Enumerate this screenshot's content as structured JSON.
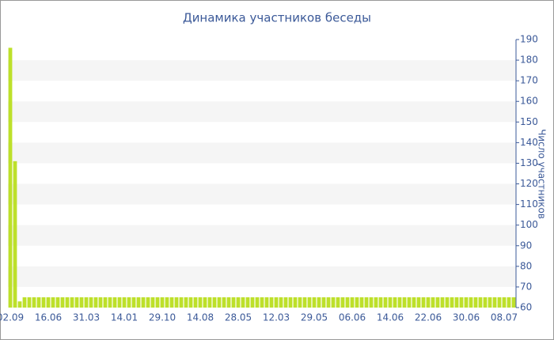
{
  "chart_data": {
    "type": "bar",
    "title": "Динамика участников беседы",
    "y_axis_label": "Число участников",
    "categories": [
      "02.09",
      null,
      null,
      null,
      null,
      null,
      null,
      null,
      "16.06",
      null,
      null,
      null,
      null,
      null,
      null,
      null,
      "31.03",
      null,
      null,
      null,
      null,
      null,
      null,
      null,
      "14.01",
      null,
      null,
      null,
      null,
      null,
      null,
      null,
      "29.10",
      null,
      null,
      null,
      null,
      null,
      null,
      null,
      "14.08",
      null,
      null,
      null,
      null,
      null,
      null,
      null,
      "28.05",
      null,
      null,
      null,
      null,
      null,
      null,
      null,
      "12.03",
      null,
      null,
      null,
      null,
      null,
      null,
      null,
      "29.05",
      null,
      null,
      null,
      null,
      null,
      null,
      null,
      "06.06",
      null,
      null,
      null,
      null,
      null,
      null,
      null,
      "14.06",
      null,
      null,
      null,
      null,
      null,
      null,
      null,
      "22.06",
      null,
      null,
      null,
      null,
      null,
      null,
      null,
      "30.06",
      null,
      null,
      null,
      null,
      null,
      null,
      null,
      "08.07",
      null,
      null
    ],
    "values": [
      186,
      131,
      63,
      65,
      65,
      65,
      65,
      65,
      65,
      65,
      65,
      65,
      65,
      65,
      65,
      65,
      65,
      65,
      65,
      65,
      65,
      65,
      65,
      65,
      65,
      65,
      65,
      65,
      65,
      65,
      65,
      65,
      65,
      65,
      65,
      65,
      65,
      65,
      65,
      65,
      65,
      65,
      65,
      65,
      65,
      65,
      65,
      65,
      65,
      65,
      65,
      65,
      65,
      65,
      65,
      65,
      65,
      65,
      65,
      65,
      65,
      65,
      65,
      65,
      65,
      65,
      65,
      65,
      65,
      65,
      65,
      65,
      65,
      65,
      65,
      65,
      65,
      65,
      65,
      65,
      65,
      65,
      65,
      65,
      65,
      65,
      65,
      65,
      65,
      65,
      65,
      65,
      65,
      65,
      65,
      65,
      65,
      65,
      65,
      65,
      65,
      65,
      65,
      65,
      65,
      65,
      65
    ],
    "color": "#bde02a",
    "ylim": [
      60,
      190
    ],
    "yticks": [
      60,
      70,
      80,
      90,
      100,
      110,
      120,
      130,
      140,
      150,
      160,
      170,
      180,
      190
    ],
    "grid": true
  }
}
